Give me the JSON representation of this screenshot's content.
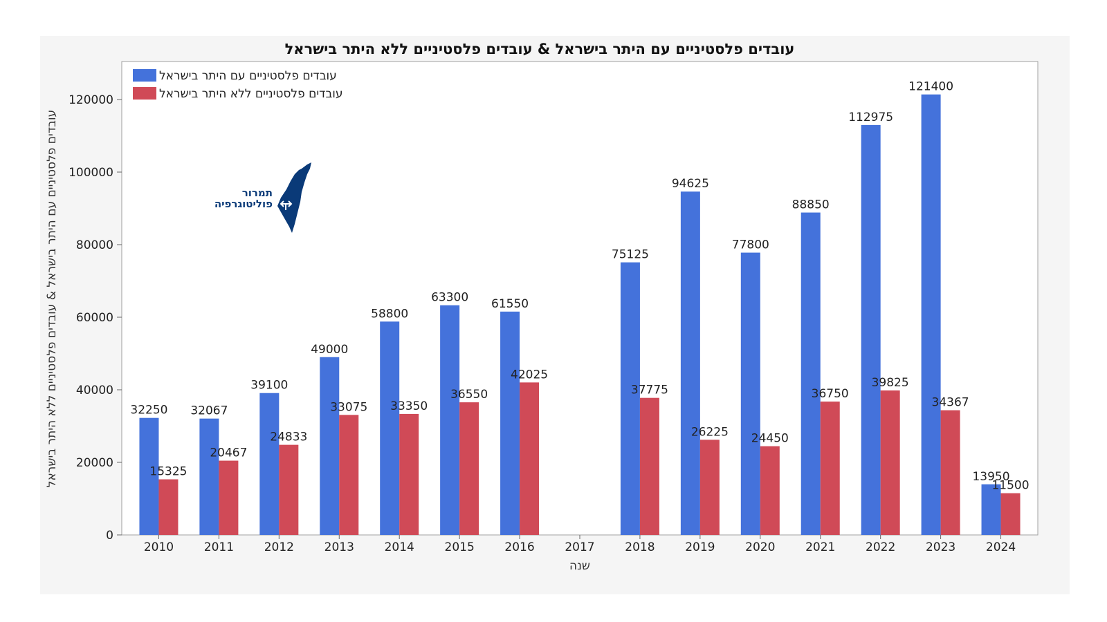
{
  "chart_data": {
    "type": "bar",
    "title": "עובדים פלסטיניים עם היתר בישראל & עובדים פלסטיניים ללא היתר בישראל",
    "xlabel": "שנה",
    "ylabel": "עובדים פלסטיניים עם היתר בישראל & עובדים פלסטיניים ללא היתר בישראל",
    "categories": [
      "2010",
      "2011",
      "2012",
      "2013",
      "2014",
      "2015",
      "2016",
      "2017",
      "2018",
      "2019",
      "2020",
      "2021",
      "2022",
      "2023",
      "2024"
    ],
    "series": [
      {
        "name": "עובדים פלסטיניים עם היתר בישראל",
        "color": "#4472db",
        "values": [
          32250,
          32067,
          39100,
          49000,
          58800,
          63300,
          61550,
          null,
          75125,
          94625,
          77800,
          88850,
          112975,
          121400,
          13950
        ]
      },
      {
        "name": "עובדים פלסטיניים ללא היתר בישראל",
        "color": "#d04a57",
        "values": [
          15325,
          20467,
          24833,
          33075,
          33350,
          36550,
          42025,
          null,
          37775,
          26225,
          24450,
          36750,
          39825,
          34367,
          11500
        ]
      }
    ],
    "ylim": [
      0,
      130000
    ],
    "yticks": [
      0,
      20000,
      40000,
      60000,
      80000,
      100000,
      120000
    ],
    "grid": false,
    "legend_position": "top-left"
  },
  "logo": {
    "line1": "תמרור",
    "line2": "פוליטוגרפיה",
    "icon": "israel-map-icon",
    "color": "#0a3a78"
  }
}
